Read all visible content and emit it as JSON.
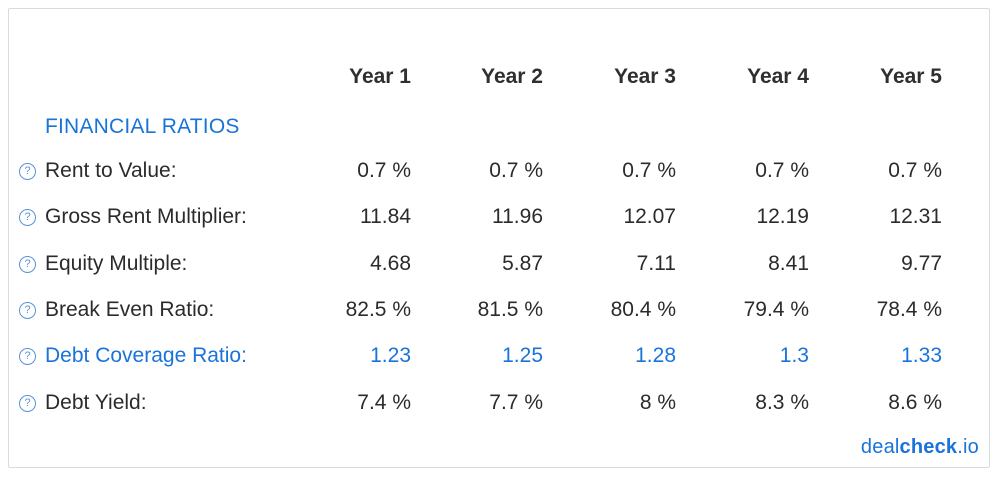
{
  "columns": [
    "Year 1",
    "Year 2",
    "Year 3",
    "Year 4",
    "Year 5"
  ],
  "section_title": "FINANCIAL RATIOS",
  "help_glyph": "?",
  "rows": [
    {
      "label": "Rent to Value:",
      "values": [
        "0.7 %",
        "0.7 %",
        "0.7 %",
        "0.7 %",
        "0.7 %"
      ]
    },
    {
      "label": "Gross Rent Multiplier:",
      "values": [
        "11.84",
        "11.96",
        "12.07",
        "12.19",
        "12.31"
      ]
    },
    {
      "label": "Equity Multiple:",
      "values": [
        "4.68",
        "5.87",
        "7.11",
        "8.41",
        "9.77"
      ]
    },
    {
      "label": "Break Even Ratio:",
      "values": [
        "82.5 %",
        "81.5 %",
        "80.4 %",
        "79.4 %",
        "78.4 %"
      ]
    },
    {
      "label": "Debt Coverage Ratio:",
      "values": [
        "1.23",
        "1.25",
        "1.28",
        "1.3",
        "1.33"
      ]
    },
    {
      "label": "Debt Yield:",
      "values": [
        "7.4 %",
        "7.7 %",
        "8 %",
        "8.3 %",
        "8.6 %"
      ]
    }
  ],
  "brand": {
    "part1": "deal",
    "part2": "check",
    "part3": ".io"
  },
  "colors": {
    "accent": "#1a73d9",
    "text": "#2b2b2b",
    "border": "#d3dde3"
  }
}
